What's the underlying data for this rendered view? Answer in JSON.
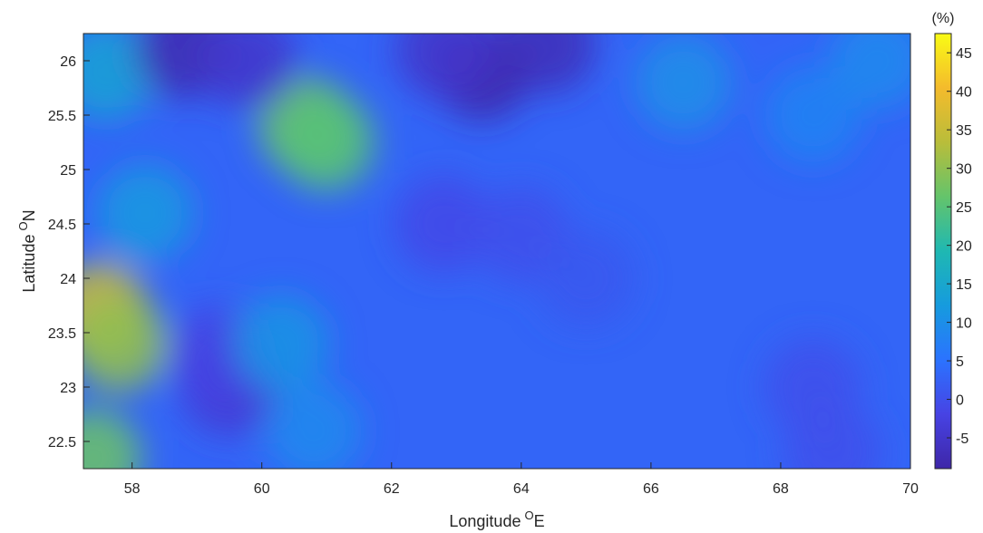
{
  "chart_data": {
    "type": "heatmap",
    "title": "",
    "xlabel": "Longitude",
    "xlabel_sup": "O",
    "xlabel_suffix": "E",
    "ylabel": "Latitude",
    "ylabel_sup": "O",
    "ylabel_suffix": "N",
    "xlim": [
      57.25,
      70.0
    ],
    "ylim": [
      22.25,
      26.25
    ],
    "xticks": [
      58,
      60,
      62,
      64,
      66,
      68,
      70
    ],
    "xtick_labels": [
      "58",
      "60",
      "62",
      "64",
      "66",
      "68",
      "70"
    ],
    "yticks": [
      22.5,
      23,
      23.5,
      24,
      24.5,
      25,
      25.5,
      26
    ],
    "ytick_labels": [
      "22.5",
      "23",
      "23.5",
      "24",
      "24.5",
      "25",
      "25.5",
      "26"
    ],
    "grid": false,
    "colorbar": {
      "title": "(%)",
      "range": [
        -9,
        47.5
      ],
      "ticks": [
        -5,
        0,
        5,
        10,
        15,
        20,
        25,
        30,
        35,
        40,
        45
      ],
      "tick_labels": [
        "-5",
        "0",
        "5",
        "10",
        "15",
        "20",
        "25",
        "30",
        "35",
        "40",
        "45"
      ],
      "colormap": "parula",
      "colors": [
        "#3e26a8",
        "#4743e4",
        "#2b73ff",
        "#169bde",
        "#1fb8b2",
        "#64c46b",
        "#b9bd3a",
        "#f4bb2c",
        "#f9fb15"
      ]
    },
    "background_value": 3,
    "features": [
      {
        "lon": 57.5,
        "lat": 23.7,
        "value": 36
      },
      {
        "lon": 57.8,
        "lat": 23.4,
        "value": 30
      },
      {
        "lon": 57.4,
        "lat": 22.35,
        "value": 27
      },
      {
        "lon": 58.2,
        "lat": 24.6,
        "value": 12
      },
      {
        "lon": 57.6,
        "lat": 25.9,
        "value": 14
      },
      {
        "lon": 60.7,
        "lat": 25.4,
        "value": 27
      },
      {
        "lon": 61.0,
        "lat": 25.25,
        "value": 25
      },
      {
        "lon": 59.5,
        "lat": 23.0,
        "value": -4
      },
      {
        "lon": 59.3,
        "lat": 23.3,
        "value": -2
      },
      {
        "lon": 60.3,
        "lat": 23.4,
        "value": 11
      },
      {
        "lon": 58.8,
        "lat": 26.1,
        "value": -8
      },
      {
        "lon": 59.8,
        "lat": 26.0,
        "value": -5
      },
      {
        "lon": 63.4,
        "lat": 25.9,
        "value": -9
      },
      {
        "lon": 64.4,
        "lat": 26.15,
        "value": -7
      },
      {
        "lon": 62.8,
        "lat": 26.1,
        "value": -5
      },
      {
        "lon": 62.8,
        "lat": 24.5,
        "value": -1
      },
      {
        "lon": 64.0,
        "lat": 24.4,
        "value": 0
      },
      {
        "lon": 65.0,
        "lat": 24.0,
        "value": 1
      },
      {
        "lon": 66.5,
        "lat": 25.8,
        "value": 10
      },
      {
        "lon": 68.5,
        "lat": 25.5,
        "value": 8
      },
      {
        "lon": 69.5,
        "lat": 26.0,
        "value": 9
      },
      {
        "lon": 68.5,
        "lat": 23.0,
        "value": 0
      },
      {
        "lon": 68.8,
        "lat": 22.4,
        "value": 0
      },
      {
        "lon": 60.8,
        "lat": 22.6,
        "value": 9
      }
    ]
  }
}
